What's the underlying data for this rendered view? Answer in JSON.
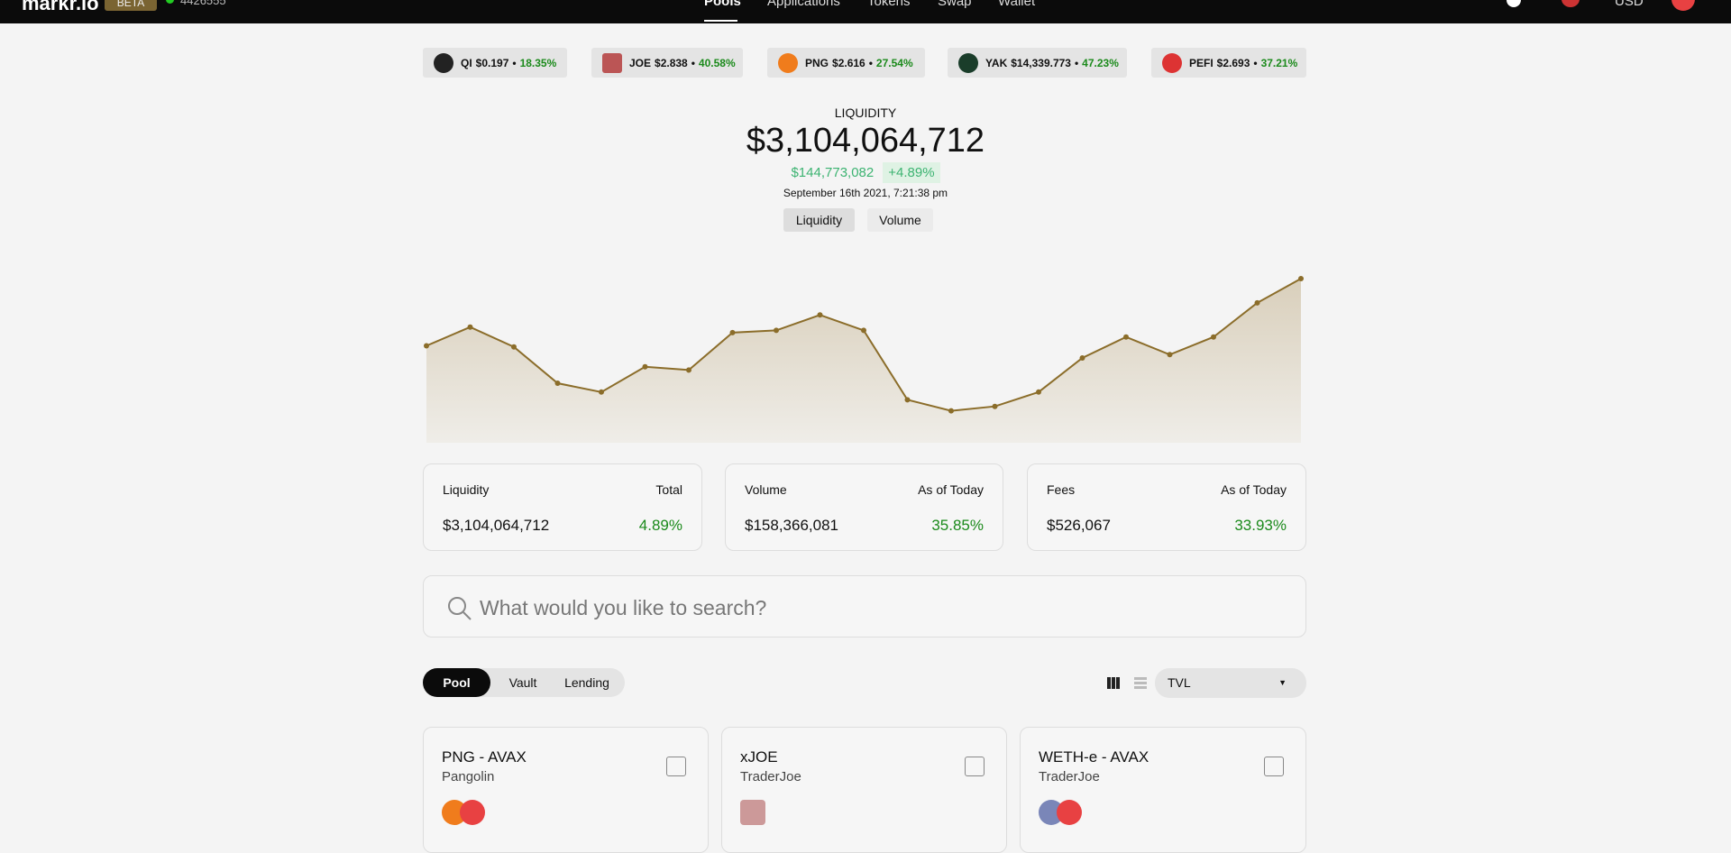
{
  "nav": {
    "logo": "markr.io",
    "badge": "BETA",
    "block": "4426555",
    "links": [
      "Pools",
      "Applications",
      "Tokens",
      "Swap",
      "Wallet"
    ],
    "currency": "USD"
  },
  "ticker_separator": "•",
  "tickers": [
    {
      "symbol": "QI",
      "price": "$0.197",
      "change": "18.35%"
    },
    {
      "symbol": "JOE",
      "price": "$2.838",
      "change": "40.58%"
    },
    {
      "symbol": "PNG",
      "price": "$2.616",
      "change": "27.54%"
    },
    {
      "symbol": "YAK",
      "price": "$14,339.773",
      "change": "47.23%"
    },
    {
      "symbol": "PEFI",
      "price": "$2.693",
      "change": "37.21%"
    }
  ],
  "overview": {
    "label": "LIQUIDITY",
    "value": "$3,104,064,712",
    "change_amount": "$144,773,082",
    "change_percent": "+4.89%",
    "timestamp": "September 16th 2021, 7:21:38 pm",
    "toggles": [
      "Liquidity",
      "Volume"
    ]
  },
  "liquidity_chart": {
    "type": "line",
    "color": "#8b6d2a",
    "values": [
      88,
      105,
      87,
      54,
      46,
      69,
      66,
      100,
      102,
      116,
      102,
      39,
      29,
      33,
      46,
      77,
      96,
      80,
      96,
      127,
      149
    ]
  },
  "stats": [
    {
      "label": "Liquidity",
      "period": "Total",
      "value": "$3,104,064,712",
      "change": "4.89%"
    },
    {
      "label": "Volume",
      "period": "As of Today",
      "value": "$158,366,081",
      "change": "35.85%"
    },
    {
      "label": "Fees",
      "period": "As of Today",
      "value": "$526,067",
      "change": "33.93%"
    }
  ],
  "search": {
    "placeholder": "What would you like to search?"
  },
  "tabs": [
    "Pool",
    "Vault",
    "Lending"
  ],
  "sort": "TVL",
  "pools": [
    {
      "name": "PNG - AVAX",
      "platform": "Pangolin"
    },
    {
      "name": "xJOE",
      "platform": "TraderJoe"
    },
    {
      "name": "WETH-e - AVAX",
      "platform": "TraderJoe"
    }
  ]
}
